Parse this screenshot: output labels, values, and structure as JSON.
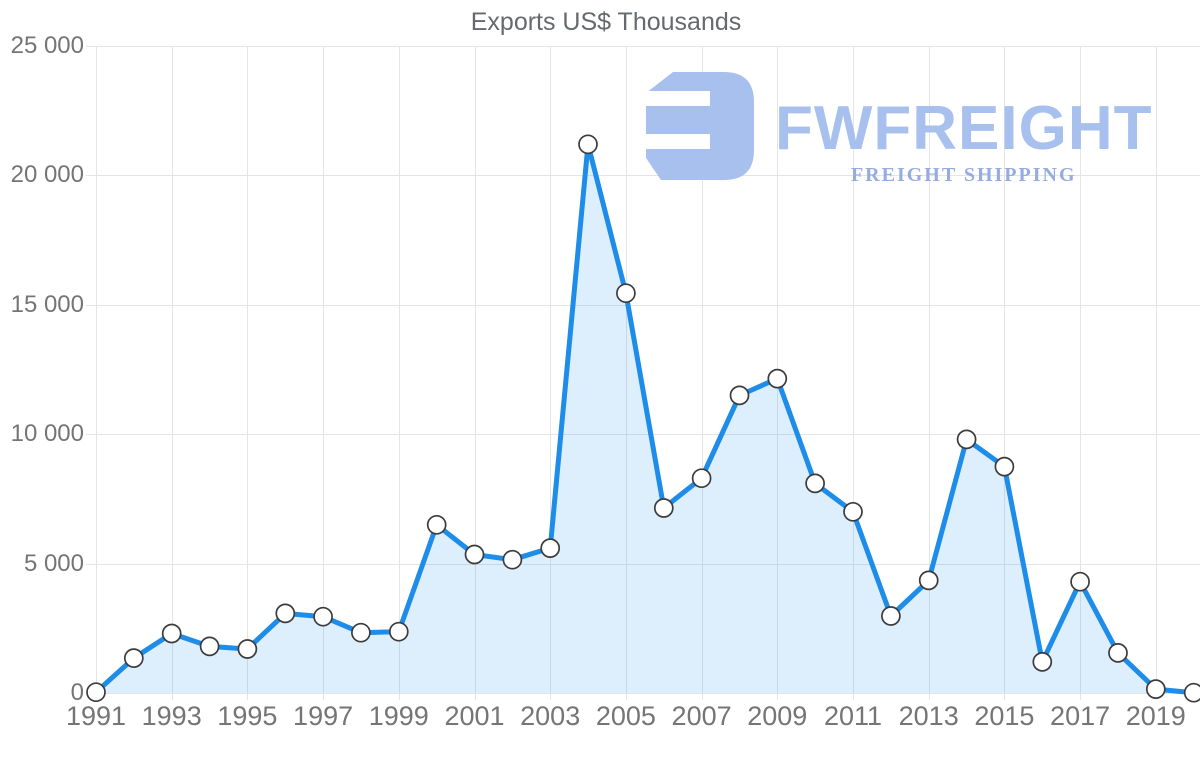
{
  "title": "Exports US$ Thousands",
  "watermark": {
    "brand": "FWFREIGHT",
    "tagline": "FREIGHT SHIPPING",
    "logo_icon": "stylized-F-block",
    "primary_color": "#a7c0ed",
    "secondary_color": "#96ace0"
  },
  "colors": {
    "line": "#1e8ce9",
    "area_fill": "rgba(30,140,233,0.15)",
    "grid": "#e4e4e4",
    "axis_text": "#757575",
    "title_text": "#666a6e",
    "marker_fill": "#ffffff",
    "marker_stroke": "#3c3c3c"
  },
  "chart_data": {
    "type": "area",
    "title": "Exports US$ Thousands",
    "xlabel": "",
    "ylabel": "",
    "x": [
      1991,
      1992,
      1993,
      1994,
      1995,
      1996,
      1997,
      1998,
      1999,
      2000,
      2001,
      2002,
      2003,
      2004,
      2005,
      2006,
      2007,
      2008,
      2009,
      2010,
      2011,
      2012,
      2013,
      2014,
      2015,
      2016,
      2017,
      2018,
      2019,
      2020
    ],
    "values": [
      30,
      1350,
      2300,
      1800,
      1700,
      3075,
      2950,
      2330,
      2370,
      6500,
      5350,
      5150,
      5600,
      21200,
      15450,
      7150,
      8300,
      11500,
      12150,
      8100,
      7000,
      2975,
      4350,
      9800,
      8750,
      1200,
      4300,
      1550,
      150,
      10
    ],
    "ylim": [
      0,
      25000
    ],
    "yticks": [
      0,
      5000,
      10000,
      15000,
      20000,
      25000
    ],
    "ytick_labels": [
      "0",
      "5 000",
      "10 000",
      "15 000",
      "20 000",
      "25 000"
    ],
    "xtick_years": [
      1991,
      1993,
      1995,
      1997,
      1999,
      2001,
      2003,
      2005,
      2007,
      2009,
      2011,
      2013,
      2015,
      2017,
      2019
    ],
    "grid": true,
    "legend": false,
    "marker": "circle",
    "line_width": 5
  }
}
